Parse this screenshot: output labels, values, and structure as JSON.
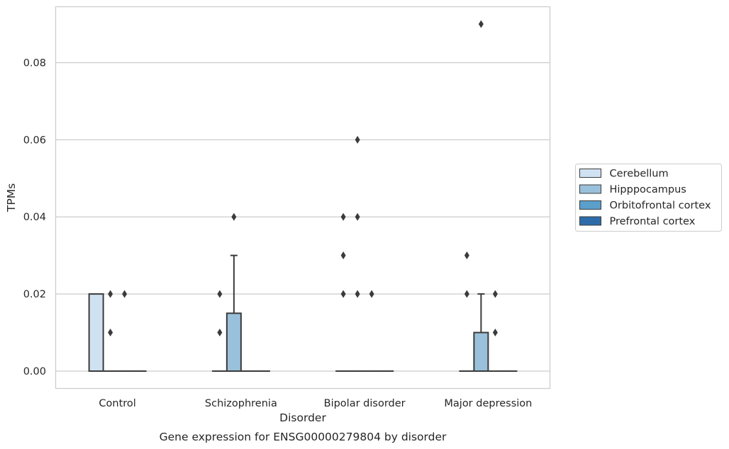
{
  "chart_data": {
    "type": "box",
    "title": "Gene expression for ENSG00000279804 by disorder",
    "xlabel": "Disorder",
    "ylabel": "TPMs",
    "ylim": [
      -0.0045,
      0.0945
    ],
    "yticks": [
      "0.00",
      "0.02",
      "0.04",
      "0.06",
      "0.08"
    ],
    "grid": "horizontal",
    "legend_position": "right",
    "categories": [
      "Control",
      "Schizophrenia",
      "Bipolar disorder",
      "Major depression"
    ],
    "series": [
      {
        "name": "Cerebellum",
        "color": "#d0e1f2",
        "boxes": [
          {
            "q1": 0,
            "median": 0,
            "q3": 0.02,
            "whislo": 0,
            "whishi": 0.02,
            "fliers": []
          },
          {
            "q1": 0,
            "median": 0,
            "q3": 0,
            "whislo": 0,
            "whishi": 0,
            "fliers": [
              0.01,
              0.02
            ]
          },
          {
            "q1": 0,
            "median": 0,
            "q3": 0,
            "whislo": 0,
            "whishi": 0,
            "fliers": [
              0.02,
              0.03,
              0.04
            ]
          },
          {
            "q1": 0,
            "median": 0,
            "q3": 0,
            "whislo": 0,
            "whishi": 0,
            "fliers": [
              0.02,
              0.03
            ]
          }
        ]
      },
      {
        "name": "Hipppocampus",
        "color": "#9ac1db",
        "boxes": [
          {
            "q1": 0,
            "median": 0,
            "q3": 0,
            "whislo": 0,
            "whishi": 0,
            "fliers": [
              0.01,
              0.02
            ]
          },
          {
            "q1": 0,
            "median": 0,
            "q3": 0.015,
            "whislo": 0,
            "whishi": 0.03,
            "fliers": [
              0.04
            ]
          },
          {
            "q1": 0,
            "median": 0,
            "q3": 0,
            "whislo": 0,
            "whishi": 0,
            "fliers": [
              0.02,
              0.04,
              0.06
            ]
          },
          {
            "q1": 0,
            "median": 0,
            "q3": 0.01,
            "whislo": 0,
            "whishi": 0.02,
            "fliers": [
              0.09
            ]
          }
        ]
      },
      {
        "name": "Orbitofrontal cortex",
        "color": "#5b9fcb",
        "boxes": [
          {
            "q1": 0,
            "median": 0,
            "q3": 0,
            "whislo": 0,
            "whishi": 0,
            "fliers": [
              0.02
            ]
          },
          {
            "q1": 0,
            "median": 0,
            "q3": 0,
            "whislo": 0,
            "whishi": 0,
            "fliers": []
          },
          {
            "q1": 0,
            "median": 0,
            "q3": 0,
            "whislo": 0,
            "whishi": 0,
            "fliers": [
              0.02
            ]
          },
          {
            "q1": 0,
            "median": 0,
            "q3": 0,
            "whislo": 0,
            "whishi": 0,
            "fliers": [
              0.01,
              0.02
            ]
          }
        ]
      },
      {
        "name": "Prefrontal cortex",
        "color": "#2e6ca9",
        "boxes": [
          {
            "q1": 0,
            "median": 0,
            "q3": 0,
            "whislo": 0,
            "whishi": 0,
            "fliers": []
          },
          {
            "q1": 0,
            "median": 0,
            "q3": 0,
            "whislo": 0,
            "whishi": 0,
            "fliers": []
          },
          {
            "q1": 0,
            "median": 0,
            "q3": 0,
            "whislo": 0,
            "whishi": 0,
            "fliers": []
          },
          {
            "q1": 0,
            "median": 0,
            "q3": 0,
            "whislo": 0,
            "whishi": 0,
            "fliers": []
          }
        ]
      }
    ]
  }
}
